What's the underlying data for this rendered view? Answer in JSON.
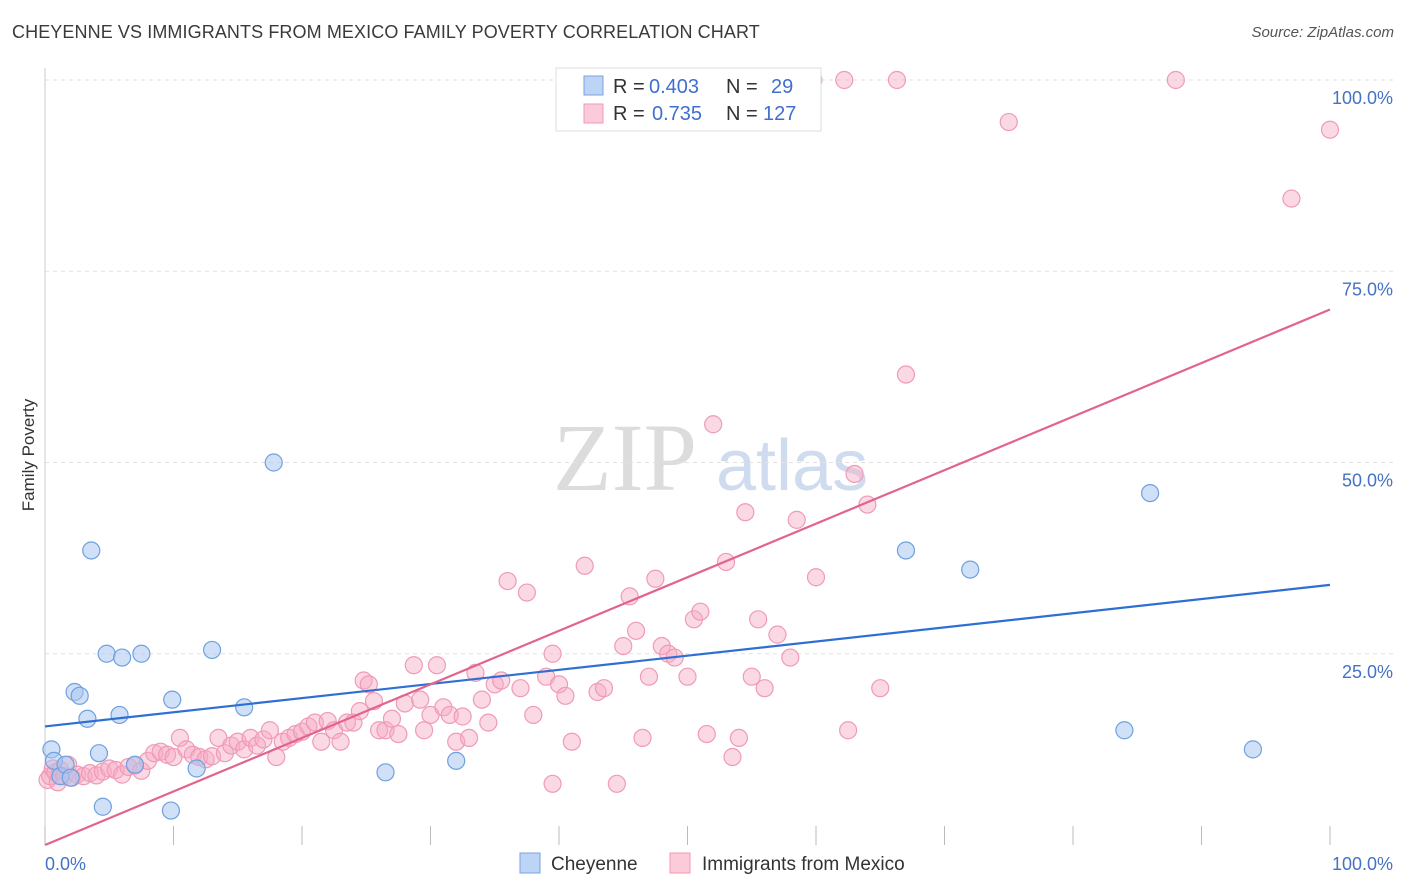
{
  "header": {
    "title": "CHEYENNE VS IMMIGRANTS FROM MEXICO FAMILY POVERTY CORRELATION CHART",
    "source": "Source: ZipAtlas.com"
  },
  "watermark": {
    "zip": "ZIP",
    "atlas": "atlas"
  },
  "legend": {
    "r_label": "R =",
    "n_label": "N =",
    "rows": [
      {
        "r": "0.403",
        "n": "29"
      },
      {
        "r": "0.735",
        "n": "127"
      }
    ]
  },
  "bottom_legend": [
    "Cheyenne",
    "Immigrants from Mexico"
  ],
  "chart_data": {
    "type": "scatter",
    "title": "CHEYENNE VS IMMIGRANTS FROM MEXICO FAMILY POVERTY CORRELATION CHART",
    "xlabel": "",
    "ylabel": "Family Poverty",
    "xlim": [
      0,
      100
    ],
    "ylim": [
      0,
      100
    ],
    "x_tick_labels": [
      "0.0%",
      "100.0%"
    ],
    "y_ticks": [
      25,
      50,
      75,
      100
    ],
    "y_tick_labels": [
      "25.0%",
      "50.0%",
      "75.0%",
      "100.0%"
    ],
    "grid": true,
    "legend_position": "top-center",
    "colors": {
      "Cheyenne": "#6fa0e0",
      "Immigrants from Mexico": "#f29ab6",
      "cheyenne_line": "#2f6fd4",
      "mexico_line": "#e0648e"
    },
    "series": [
      {
        "name": "Cheyenne",
        "r": 0.403,
        "n": 29,
        "trend": [
          [
            0,
            15.5
          ],
          [
            100,
            34
          ]
        ],
        "points": [
          [
            0.5,
            12.5
          ],
          [
            0.7,
            11
          ],
          [
            1.2,
            9
          ],
          [
            1.6,
            10.5
          ],
          [
            2,
            8.8
          ],
          [
            2.3,
            20
          ],
          [
            2.7,
            19.5
          ],
          [
            3.3,
            16.5
          ],
          [
            3.6,
            38.5
          ],
          [
            4.2,
            12
          ],
          [
            4.5,
            5
          ],
          [
            4.8,
            25
          ],
          [
            5.8,
            17
          ],
          [
            6,
            24.5
          ],
          [
            7,
            10.5
          ],
          [
            7.5,
            25
          ],
          [
            9.8,
            4.5
          ],
          [
            9.9,
            19
          ],
          [
            11.8,
            10
          ],
          [
            13,
            25.5
          ],
          [
            15.5,
            18
          ],
          [
            17.8,
            50
          ],
          [
            26.5,
            9.5
          ],
          [
            32,
            11
          ],
          [
            67,
            38.5
          ],
          [
            72,
            36
          ],
          [
            84,
            15
          ],
          [
            86,
            46
          ],
          [
            94,
            12.5
          ]
        ]
      },
      {
        "name": "Immigrants from Mexico",
        "r": 0.735,
        "n": 127,
        "trend": [
          [
            0,
            0
          ],
          [
            100,
            70
          ]
        ],
        "points": [
          [
            0.2,
            8.5
          ],
          [
            0.4,
            9
          ],
          [
            0.6,
            10
          ],
          [
            0.8,
            9.5
          ],
          [
            1,
            8.2
          ],
          [
            1.2,
            9.8
          ],
          [
            1.5,
            9
          ],
          [
            1.8,
            10.5
          ],
          [
            2.1,
            8.8
          ],
          [
            2.5,
            9.2
          ],
          [
            3,
            9
          ],
          [
            3.5,
            9.4
          ],
          [
            4,
            9.1
          ],
          [
            4.5,
            9.6
          ],
          [
            5,
            10
          ],
          [
            5.5,
            9.8
          ],
          [
            6,
            9.2
          ],
          [
            6.5,
            10.2
          ],
          [
            7,
            10.4
          ],
          [
            7.5,
            9.7
          ],
          [
            8,
            11
          ],
          [
            8.5,
            12
          ],
          [
            9,
            12.2
          ],
          [
            9.5,
            11.8
          ],
          [
            10,
            11.5
          ],
          [
            10.5,
            14
          ],
          [
            11,
            12.5
          ],
          [
            11.5,
            11.8
          ],
          [
            12,
            11.5
          ],
          [
            12.5,
            11.2
          ],
          [
            13,
            11.6
          ],
          [
            13.5,
            14
          ],
          [
            14,
            12
          ],
          [
            14.5,
            13
          ],
          [
            15,
            13.5
          ],
          [
            15.5,
            12.5
          ],
          [
            16,
            14
          ],
          [
            16.5,
            13
          ],
          [
            17,
            13.8
          ],
          [
            17.5,
            15
          ],
          [
            18,
            11.5
          ],
          [
            18.5,
            13.5
          ],
          [
            19,
            14
          ],
          [
            19.5,
            14.5
          ],
          [
            20,
            14.8
          ],
          [
            20.5,
            15.5
          ],
          [
            21,
            16
          ],
          [
            21.5,
            13.5
          ],
          [
            22,
            16.2
          ],
          [
            22.5,
            15
          ],
          [
            23,
            13.5
          ],
          [
            23.5,
            16
          ],
          [
            24,
            16
          ],
          [
            24.5,
            17.5
          ],
          [
            24.8,
            21.5
          ],
          [
            25.2,
            21
          ],
          [
            25.6,
            18.8
          ],
          [
            26,
            15
          ],
          [
            26.5,
            15
          ],
          [
            27,
            16.5
          ],
          [
            27.5,
            14.5
          ],
          [
            28,
            18.5
          ],
          [
            28.7,
            23.5
          ],
          [
            29.2,
            19
          ],
          [
            29.5,
            15
          ],
          [
            30,
            17
          ],
          [
            30.5,
            23.5
          ],
          [
            31,
            18
          ],
          [
            31.5,
            17
          ],
          [
            32,
            13.5
          ],
          [
            32.5,
            16.8
          ],
          [
            33,
            14
          ],
          [
            33.5,
            22.5
          ],
          [
            34,
            19
          ],
          [
            34.5,
            16
          ],
          [
            35,
            21
          ],
          [
            35.5,
            21.5
          ],
          [
            36,
            34.5
          ],
          [
            37,
            20.5
          ],
          [
            37.5,
            33
          ],
          [
            38,
            17
          ],
          [
            39,
            22
          ],
          [
            39.5,
            25
          ],
          [
            40,
            21
          ],
          [
            40.5,
            19.5
          ],
          [
            41,
            13.5
          ],
          [
            42,
            36.5
          ],
          [
            43,
            20
          ],
          [
            43.5,
            20.5
          ],
          [
            44.5,
            8
          ],
          [
            45,
            26
          ],
          [
            45.5,
            32.5
          ],
          [
            46,
            28
          ],
          [
            46.5,
            14
          ],
          [
            47,
            22
          ],
          [
            47.5,
            34.8
          ],
          [
            48,
            26
          ],
          [
            48.5,
            25
          ],
          [
            49,
            24.5
          ],
          [
            50,
            22
          ],
          [
            50.5,
            29.5
          ],
          [
            51,
            30.5
          ],
          [
            51.5,
            14.5
          ],
          [
            52,
            55
          ],
          [
            53,
            37
          ],
          [
            53.5,
            11.5
          ],
          [
            54,
            14
          ],
          [
            54.5,
            43.5
          ],
          [
            55,
            22
          ],
          [
            55.5,
            29.5
          ],
          [
            56,
            20.5
          ],
          [
            57,
            27.5
          ],
          [
            58,
            24.5
          ],
          [
            58.5,
            42.5
          ],
          [
            60,
            35
          ],
          [
            62.5,
            15
          ],
          [
            63,
            48.5
          ],
          [
            64,
            44.5
          ],
          [
            65,
            20.5
          ],
          [
            67,
            61.5
          ],
          [
            75,
            94.5
          ],
          [
            88,
            100
          ],
          [
            97,
            84.5
          ],
          [
            100,
            93.5
          ],
          [
            59.8,
            100
          ],
          [
            62.2,
            100
          ],
          [
            66.3,
            100
          ],
          [
            57.5,
            100
          ],
          [
            39.5,
            8
          ]
        ]
      }
    ]
  }
}
